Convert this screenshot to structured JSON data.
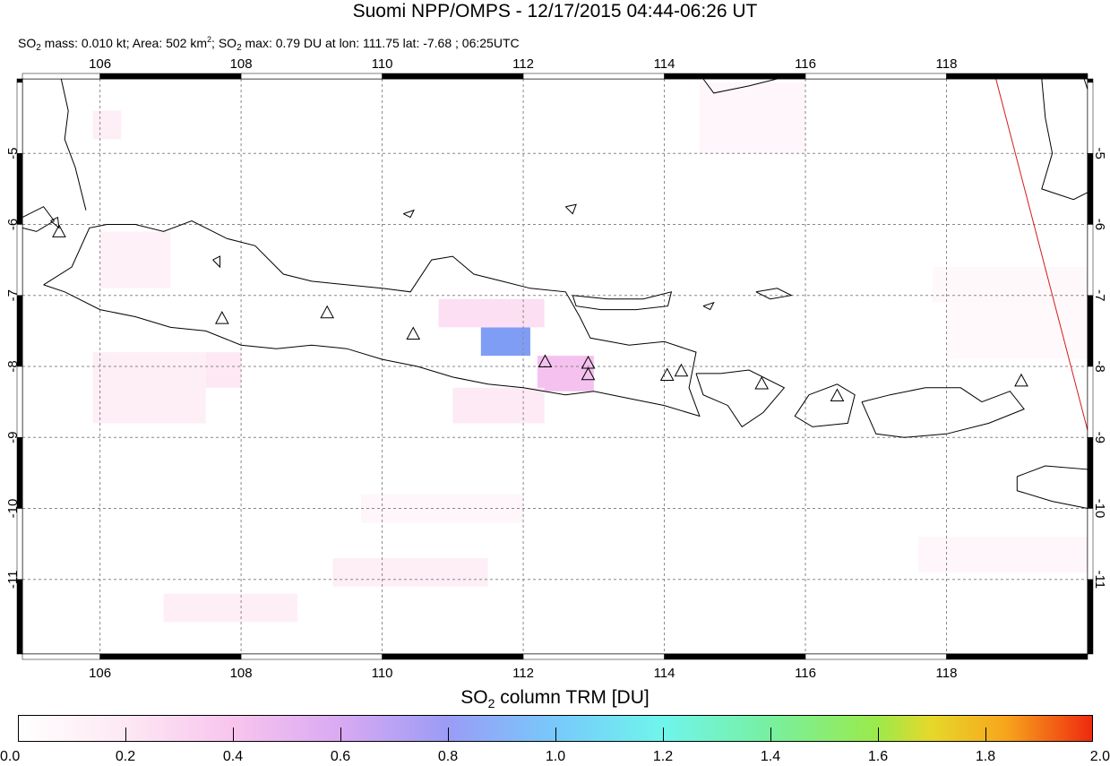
{
  "title": "Suomi NPP/OMPS - 12/17/2015 04:44-06:26 UT",
  "subtitle": {
    "mass": "0.010 kt",
    "area": "502 km",
    "so2max": "0.79 DU at lon: 111.75 lat: -7.68 ; 06:25UTC"
  },
  "map": {
    "lon_range": [
      104.9,
      120.0
    ],
    "lat_range": [
      -12.05,
      -3.95
    ],
    "lon_ticks": [
      106,
      108,
      110,
      112,
      114,
      116,
      118
    ],
    "lat_ticks": [
      -5,
      -6,
      -7,
      -8,
      -9,
      -10,
      -11
    ],
    "volcanoes": [
      {
        "lon": 105.42,
        "lat": -6.1
      },
      {
        "lon": 107.73,
        "lat": -7.32
      },
      {
        "lon": 109.22,
        "lat": -7.24
      },
      {
        "lon": 110.44,
        "lat": -7.54
      },
      {
        "lon": 112.31,
        "lat": -7.93
      },
      {
        "lon": 112.92,
        "lat": -7.95
      },
      {
        "lon": 112.92,
        "lat": -8.11
      },
      {
        "lon": 114.04,
        "lat": -8.12
      },
      {
        "lon": 114.24,
        "lat": -8.06
      },
      {
        "lon": 115.38,
        "lat": -8.24
      },
      {
        "lon": 116.45,
        "lat": -8.41
      },
      {
        "lon": 119.06,
        "lat": -8.2
      }
    ],
    "so2_pixels": [
      {
        "lon0": 111.4,
        "lon1": 112.1,
        "lat0": -7.45,
        "lat1": -7.85,
        "du": 0.79
      },
      {
        "lon0": 112.2,
        "lon1": 113.0,
        "lat0": -7.85,
        "lat1": -8.35,
        "du": 0.42
      },
      {
        "lon0": 110.8,
        "lon1": 112.3,
        "lat0": -7.05,
        "lat1": -7.45,
        "du": 0.25
      },
      {
        "lon0": 111.0,
        "lon1": 112.3,
        "lat0": -8.3,
        "lat1": -8.8,
        "du": 0.18
      },
      {
        "lon0": 105.9,
        "lon1": 107.5,
        "lat0": -7.8,
        "lat1": -8.8,
        "du": 0.15
      },
      {
        "lon0": 107.5,
        "lon1": 108.0,
        "lat0": -7.8,
        "lat1": -8.3,
        "du": 0.2
      },
      {
        "lon0": 106.0,
        "lon1": 107.0,
        "lat0": -6.1,
        "lat1": -6.9,
        "du": 0.12
      },
      {
        "lon0": 105.9,
        "lon1": 106.3,
        "lat0": -4.4,
        "lat1": -4.8,
        "du": 0.15
      },
      {
        "lon0": 114.5,
        "lon1": 116.0,
        "lat0": -4.0,
        "lat1": -5.0,
        "du": 0.08
      },
      {
        "lon0": 109.3,
        "lon1": 111.5,
        "lat0": -10.7,
        "lat1": -11.1,
        "du": 0.15
      },
      {
        "lon0": 106.9,
        "lon1": 108.8,
        "lat0": -11.2,
        "lat1": -11.6,
        "du": 0.14
      },
      {
        "lon0": 109.7,
        "lon1": 112.0,
        "lat0": -9.8,
        "lat1": -10.2,
        "du": 0.08
      },
      {
        "lon0": 117.6,
        "lon1": 120.0,
        "lat0": -10.4,
        "lat1": -10.9,
        "du": 0.08
      },
      {
        "lon0": 117.8,
        "lon1": 120.0,
        "lat0": -6.6,
        "lat1": -7.1,
        "du": 0.06
      },
      {
        "lon0": 118.0,
        "lon1": 120.0,
        "lat0": -7.1,
        "lat1": -7.9,
        "du": 0.05
      }
    ],
    "swath_edge": [
      {
        "lon": 118.7,
        "lat": -3.95
      },
      {
        "lon": 120.0,
        "lat": -8.9
      }
    ]
  },
  "colorbar": {
    "title": "column TRM [DU]",
    "ticks": [
      "0.0",
      "0.2",
      "0.4",
      "0.6",
      "0.8",
      "1.0",
      "1.2",
      "1.4",
      "1.6",
      "1.8",
      "2.0"
    ],
    "range": [
      0.0,
      2.0
    ]
  }
}
